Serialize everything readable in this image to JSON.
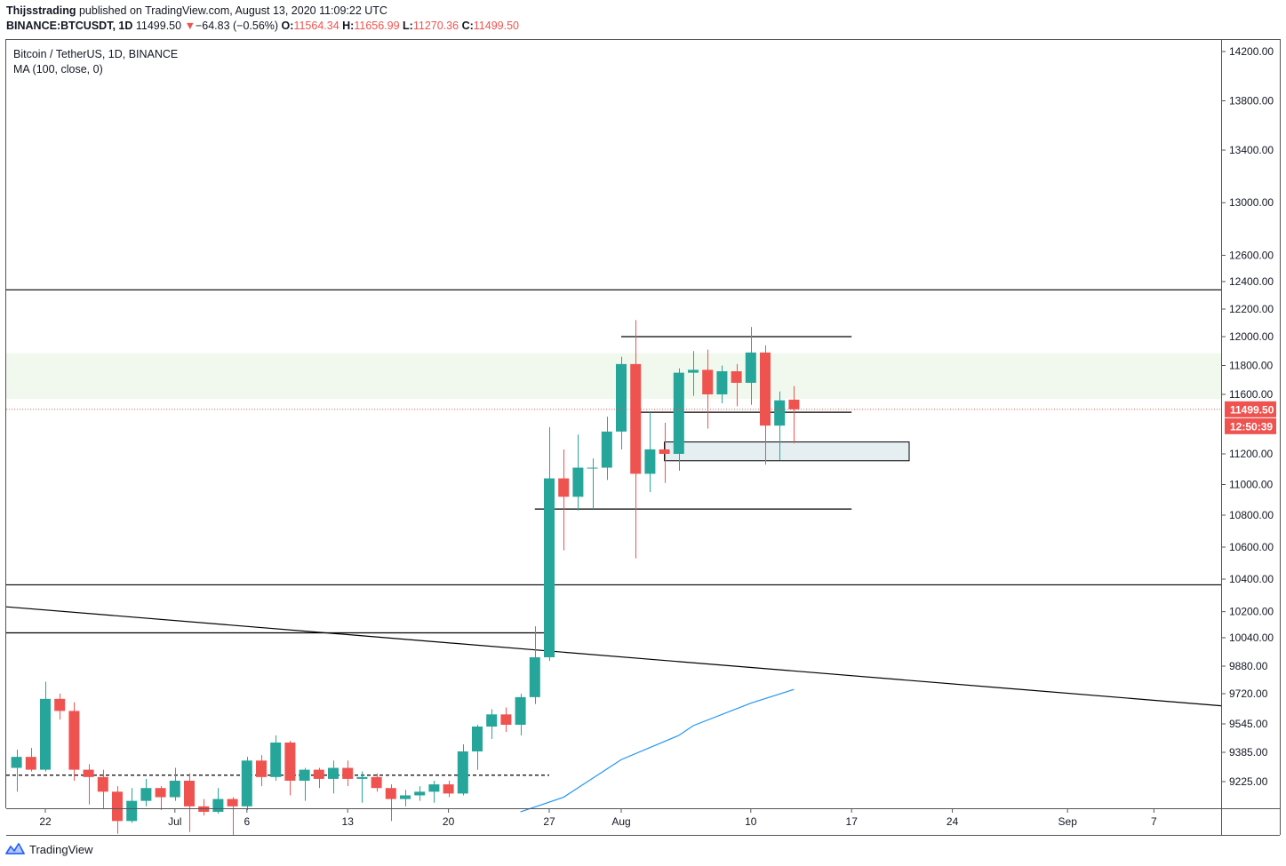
{
  "header": {
    "author": "Thijsstrading",
    "published_text": "published on TradingView.com, August 13, 2020 11:09:22 UTC",
    "symbol": "BINANCE:BTCUSDT, 1D",
    "last": "11499.50",
    "change_arrow": "▼",
    "change": "−64.83 (−0.56%)",
    "o_label": "O:",
    "o_value": "11564.34",
    "h_label": "H:",
    "h_value": "11656.99",
    "l_label": "L:",
    "l_value": "11270.36",
    "c_label": "C:",
    "c_value": "11499.50"
  },
  "legend": {
    "title": "Bitcoin / TetherUS, 1D, BINANCE",
    "indicator": "MA (100, close, 0)"
  },
  "footer": {
    "brand": "TradingView",
    "logo_icon": "tradingview-logo-icon"
  },
  "chart_data": {
    "type": "candlestick",
    "colors": {
      "up": "#26a69a",
      "down": "#ef5350",
      "ma": "#2196f3",
      "zone": "#f1f8ee",
      "box": "#e5eff2"
    },
    "price_axis_ticks": [
      14200,
      13800,
      13400,
      13000,
      12600,
      12400,
      12200,
      12000,
      11800,
      11600,
      11200,
      11000,
      10800,
      10600,
      10400,
      10200,
      10040,
      9880,
      9720,
      9545,
      9385,
      9225
    ],
    "price_axis_labels": [
      "14200.00",
      "13800.00",
      "13400.00",
      "13000.00",
      "12600.00",
      "12400.00",
      "12200.00",
      "12000.00",
      "11800.00",
      "11600.00",
      "11200.00",
      "11000.00",
      "10800.00",
      "10600.00",
      "10400.00",
      "10200.00",
      "10040.00",
      "9880.00",
      "9720.00",
      "9545.00",
      "9385.00",
      "9225.00"
    ],
    "time_axis": [
      {
        "date": "2020-06-22",
        "label": "22"
      },
      {
        "date": "2020-07-01",
        "label": "Jul"
      },
      {
        "date": "2020-07-06",
        "label": "6"
      },
      {
        "date": "2020-07-13",
        "label": "13"
      },
      {
        "date": "2020-07-20",
        "label": "20"
      },
      {
        "date": "2020-07-27",
        "label": "27"
      },
      {
        "date": "2020-08-01",
        "label": "Aug"
      },
      {
        "date": "2020-08-10",
        "label": "10"
      },
      {
        "date": "2020-08-17",
        "label": "17"
      },
      {
        "date": "2020-08-24",
        "label": "24"
      },
      {
        "date": "2020-09-01",
        "label": "Sep"
      },
      {
        "date": "2020-09-07",
        "label": "7"
      }
    ],
    "last_price_label": "11499.50",
    "countdown_label": "12:50:39",
    "candles": [
      {
        "date": "2020-06-20",
        "o": 9300,
        "h": 9400,
        "l": 9170,
        "c": 9360
      },
      {
        "date": "2020-06-21",
        "o": 9360,
        "h": 9410,
        "l": 9280,
        "c": 9290
      },
      {
        "date": "2020-06-22",
        "o": 9290,
        "h": 9790,
        "l": 9280,
        "c": 9690
      },
      {
        "date": "2020-06-23",
        "o": 9690,
        "h": 9720,
        "l": 9570,
        "c": 9620
      },
      {
        "date": "2020-06-24",
        "o": 9620,
        "h": 9670,
        "l": 9230,
        "c": 9290
      },
      {
        "date": "2020-06-25",
        "o": 9290,
        "h": 9320,
        "l": 9100,
        "c": 9250
      },
      {
        "date": "2020-06-26",
        "o": 9250,
        "h": 9290,
        "l": 9080,
        "c": 9170
      },
      {
        "date": "2020-06-27",
        "o": 9170,
        "h": 9200,
        "l": 8940,
        "c": 9010
      },
      {
        "date": "2020-06-28",
        "o": 9010,
        "h": 9190,
        "l": 9000,
        "c": 9120
      },
      {
        "date": "2020-06-29",
        "o": 9120,
        "h": 9240,
        "l": 9090,
        "c": 9190
      },
      {
        "date": "2020-06-30",
        "o": 9190,
        "h": 9200,
        "l": 9070,
        "c": 9140
      },
      {
        "date": "2020-07-01",
        "o": 9140,
        "h": 9300,
        "l": 9120,
        "c": 9230
      },
      {
        "date": "2020-07-02",
        "o": 9230,
        "h": 9270,
        "l": 8950,
        "c": 9090
      },
      {
        "date": "2020-07-03",
        "o": 9090,
        "h": 9130,
        "l": 9040,
        "c": 9060
      },
      {
        "date": "2020-07-04",
        "o": 9060,
        "h": 9190,
        "l": 9050,
        "c": 9130
      },
      {
        "date": "2020-07-05",
        "o": 9130,
        "h": 9140,
        "l": 8930,
        "c": 9090
      },
      {
        "date": "2020-07-06",
        "o": 9090,
        "h": 9360,
        "l": 9070,
        "c": 9340
      },
      {
        "date": "2020-07-07",
        "o": 9340,
        "h": 9370,
        "l": 9200,
        "c": 9250
      },
      {
        "date": "2020-07-08",
        "o": 9250,
        "h": 9480,
        "l": 9230,
        "c": 9440
      },
      {
        "date": "2020-07-09",
        "o": 9440,
        "h": 9450,
        "l": 9150,
        "c": 9230
      },
      {
        "date": "2020-07-10",
        "o": 9230,
        "h": 9300,
        "l": 9120,
        "c": 9290
      },
      {
        "date": "2020-07-11",
        "o": 9290,
        "h": 9300,
        "l": 9190,
        "c": 9240
      },
      {
        "date": "2020-07-12",
        "o": 9240,
        "h": 9340,
        "l": 9160,
        "c": 9300
      },
      {
        "date": "2020-07-13",
        "o": 9300,
        "h": 9340,
        "l": 9200,
        "c": 9240
      },
      {
        "date": "2020-07-14",
        "o": 9240,
        "h": 9280,
        "l": 9110,
        "c": 9250
      },
      {
        "date": "2020-07-15",
        "o": 9250,
        "h": 9270,
        "l": 9170,
        "c": 9190
      },
      {
        "date": "2020-07-16",
        "o": 9190,
        "h": 9210,
        "l": 9010,
        "c": 9130
      },
      {
        "date": "2020-07-17",
        "o": 9130,
        "h": 9180,
        "l": 9090,
        "c": 9150
      },
      {
        "date": "2020-07-18",
        "o": 9150,
        "h": 9200,
        "l": 9120,
        "c": 9170
      },
      {
        "date": "2020-07-19",
        "o": 9170,
        "h": 9230,
        "l": 9110,
        "c": 9210
      },
      {
        "date": "2020-07-20",
        "o": 9210,
        "h": 9230,
        "l": 9140,
        "c": 9160
      },
      {
        "date": "2020-07-21",
        "o": 9160,
        "h": 9430,
        "l": 9150,
        "c": 9390
      },
      {
        "date": "2020-07-22",
        "o": 9390,
        "h": 9540,
        "l": 9290,
        "c": 9530
      },
      {
        "date": "2020-07-23",
        "o": 9530,
        "h": 9630,
        "l": 9460,
        "c": 9600
      },
      {
        "date": "2020-07-24",
        "o": 9600,
        "h": 9640,
        "l": 9500,
        "c": 9540
      },
      {
        "date": "2020-07-25",
        "o": 9540,
        "h": 9720,
        "l": 9480,
        "c": 9700
      },
      {
        "date": "2020-07-26",
        "o": 9700,
        "h": 10110,
        "l": 9660,
        "c": 9930
      },
      {
        "date": "2020-07-27",
        "o": 9930,
        "h": 11380,
        "l": 9910,
        "c": 11040
      },
      {
        "date": "2020-07-28",
        "o": 11040,
        "h": 11230,
        "l": 10580,
        "c": 10920
      },
      {
        "date": "2020-07-29",
        "o": 10920,
        "h": 11330,
        "l": 10830,
        "c": 11110
      },
      {
        "date": "2020-07-30",
        "o": 11110,
        "h": 11170,
        "l": 10840,
        "c": 11110
      },
      {
        "date": "2020-07-31",
        "o": 11110,
        "h": 11450,
        "l": 11030,
        "c": 11350
      },
      {
        "date": "2020-08-01",
        "o": 11350,
        "h": 11860,
        "l": 11230,
        "c": 11810
      },
      {
        "date": "2020-08-02",
        "o": 11810,
        "h": 12120,
        "l": 10530,
        "c": 11070
      },
      {
        "date": "2020-08-03",
        "o": 11070,
        "h": 11480,
        "l": 10950,
        "c": 11230
      },
      {
        "date": "2020-08-04",
        "o": 11230,
        "h": 11410,
        "l": 11010,
        "c": 11200
      },
      {
        "date": "2020-08-05",
        "o": 11200,
        "h": 11780,
        "l": 11090,
        "c": 11750
      },
      {
        "date": "2020-08-06",
        "o": 11750,
        "h": 11900,
        "l": 11590,
        "c": 11770
      },
      {
        "date": "2020-08-07",
        "o": 11770,
        "h": 11910,
        "l": 11370,
        "c": 11600
      },
      {
        "date": "2020-08-08",
        "o": 11600,
        "h": 11800,
        "l": 11540,
        "c": 11760
      },
      {
        "date": "2020-08-09",
        "o": 11760,
        "h": 11810,
        "l": 11520,
        "c": 11680
      },
      {
        "date": "2020-08-10",
        "o": 11680,
        "h": 12070,
        "l": 11530,
        "c": 11890
      },
      {
        "date": "2020-08-11",
        "o": 11890,
        "h": 11940,
        "l": 11130,
        "c": 11390
      },
      {
        "date": "2020-08-12",
        "o": 11390,
        "h": 11620,
        "l": 11160,
        "c": 11560
      },
      {
        "date": "2020-08-13",
        "o": 11564.34,
        "h": 11656.99,
        "l": 11270.36,
        "c": 11499.5
      }
    ],
    "ma_100": [
      {
        "date": "2020-07-25",
        "value": 9060
      },
      {
        "date": "2020-07-28",
        "value": 9140
      },
      {
        "date": "2020-08-01",
        "value": 9345
      },
      {
        "date": "2020-08-05",
        "value": 9480
      },
      {
        "date": "2020-08-06",
        "value": 9535
      },
      {
        "date": "2020-08-10",
        "value": 9665
      },
      {
        "date": "2020-08-13",
        "value": 9745
      }
    ],
    "drawings": {
      "hlines_full": [
        12340,
        10365
      ],
      "hline_long": {
        "price": 10070,
        "from": "2020-06-19",
        "to": "2020-07-27"
      },
      "dashed": {
        "price": 9260,
        "from": "2020-06-19",
        "to": "2020-07-27"
      },
      "trendline": {
        "from": {
          "date": "2020-06-19",
          "price": 10230
        },
        "to": {
          "date": "2020-09-12",
          "price": 9650
        }
      },
      "range_lines": [
        {
          "price": 12000,
          "from": "2020-08-01",
          "to": "2020-08-17"
        },
        {
          "price": 11480,
          "from": "2020-08-02",
          "to": "2020-08-17"
        },
        {
          "price": 10840,
          "from": "2020-07-26",
          "to": "2020-08-17"
        }
      ],
      "zone": {
        "top": 11885,
        "bottom": 11570
      },
      "box": {
        "top": 11280,
        "bottom": 11155,
        "from": "2020-08-04",
        "to": "2020-08-21"
      }
    }
  }
}
